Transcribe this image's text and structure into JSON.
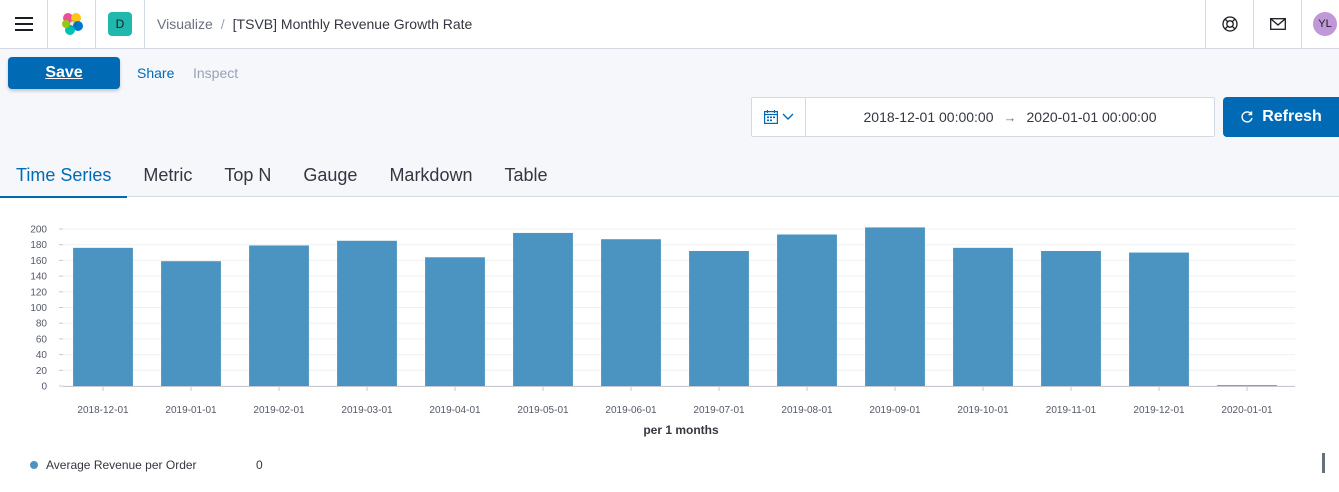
{
  "header": {
    "space_badge": "D",
    "breadcrumb_parent": "Visualize",
    "breadcrumb_separator": "/",
    "breadcrumb_current": "[TSVB] Monthly Revenue Growth Rate",
    "avatar_initials": "YL"
  },
  "toolbar": {
    "save_label": "Save",
    "share_label": "Share",
    "inspect_label": "Inspect"
  },
  "datepicker": {
    "start": "2018-12-01 00:00:00",
    "arrow": "→",
    "end": "2020-01-01 00:00:00",
    "refresh_label": "Refresh"
  },
  "tabs": [
    {
      "label": "Time Series",
      "active": true
    },
    {
      "label": "Metric",
      "active": false
    },
    {
      "label": "Top N",
      "active": false
    },
    {
      "label": "Gauge",
      "active": false
    },
    {
      "label": "Markdown",
      "active": false
    },
    {
      "label": "Table",
      "active": false
    }
  ],
  "colors": {
    "accent": "#006bb4",
    "bar": "#4b94c2",
    "space_badge": "#20b7ad",
    "avatar": "#c098d8"
  },
  "chart_data": {
    "type": "bar",
    "categories": [
      "2018-12-01",
      "2019-01-01",
      "2019-02-01",
      "2019-03-01",
      "2019-04-01",
      "2019-05-01",
      "2019-06-01",
      "2019-07-01",
      "2019-08-01",
      "2019-09-01",
      "2019-10-01",
      "2019-11-01",
      "2019-12-01",
      "2020-01-01"
    ],
    "series": [
      {
        "name": "Average Revenue per Order",
        "values": [
          176,
          159,
          179,
          185,
          164,
          195,
          187,
          172,
          193,
          202,
          176,
          172,
          170,
          0
        ]
      }
    ],
    "xlabel": "per 1 months",
    "ylabel": "",
    "ylim": [
      0,
      200
    ],
    "yticks": [
      0,
      20,
      40,
      60,
      80,
      100,
      120,
      140,
      160,
      180,
      200
    ],
    "grid": true,
    "legend_position": "bottom-left"
  },
  "legend": {
    "label": "Average Revenue per Order",
    "value": "0"
  }
}
